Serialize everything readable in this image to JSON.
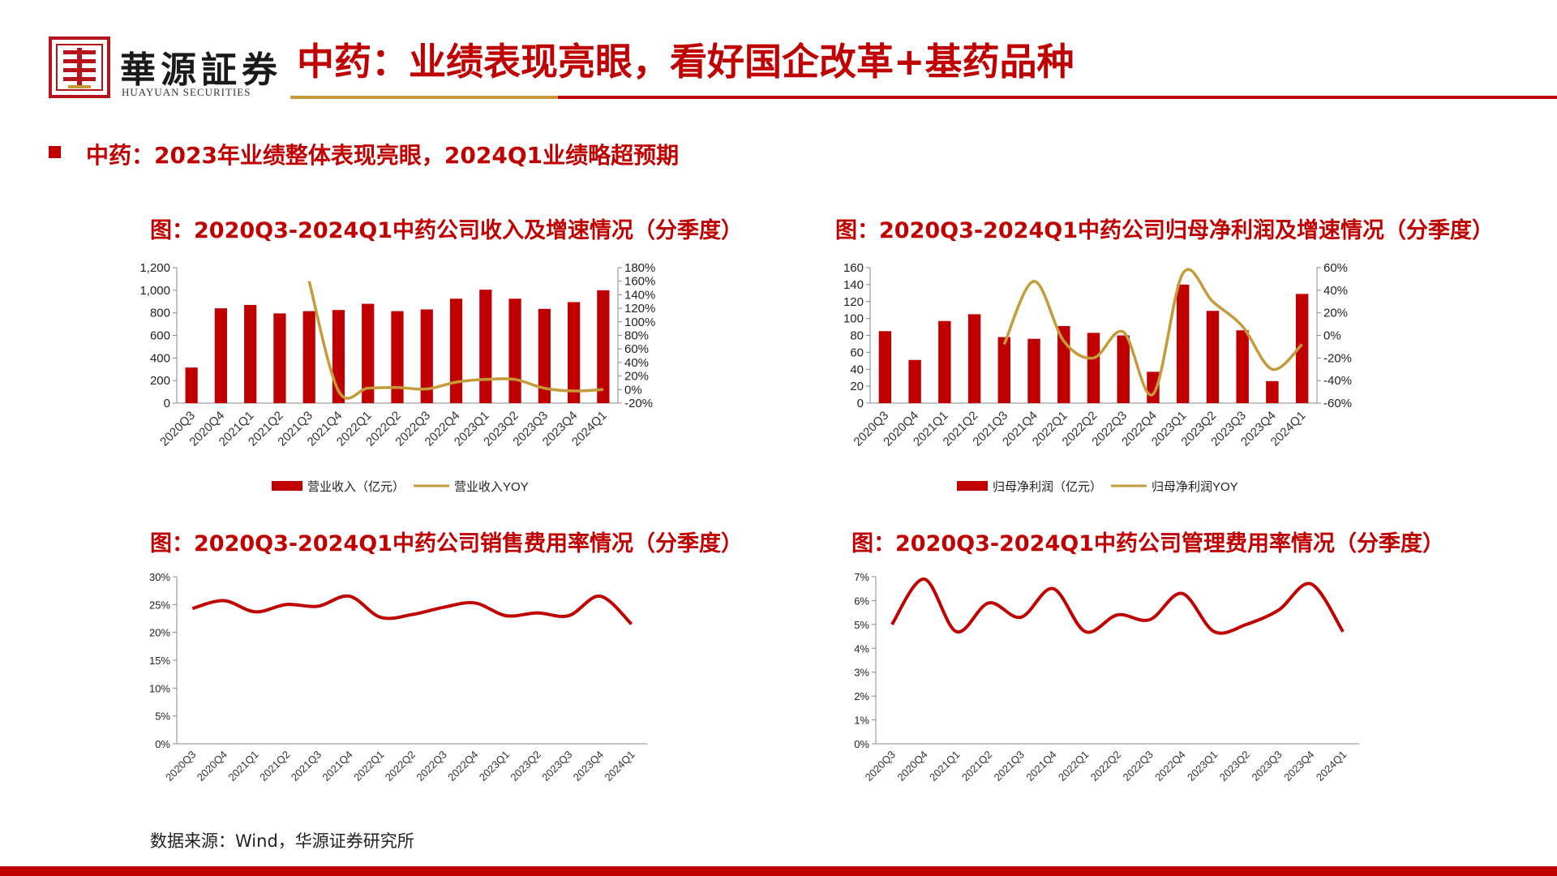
{
  "header": {
    "logo_cn": "華源証券",
    "logo_en": "HUAYUAN SECURITIES",
    "title": "中药：业绩表现亮眼，看好国企改革+基药品种"
  },
  "section": {
    "heading": "中药：2023年业绩整体表现亮眼，2024Q1业绩略超预期"
  },
  "footer": {
    "source": "数据来源：Wind，华源证券研究所"
  },
  "colors": {
    "bar": "#c00000",
    "yoy_line": "#c59b3a",
    "ratio_line": "#c00000",
    "brand_red": "#c00000",
    "brand_gold": "#c59b3a"
  },
  "chart_data": [
    {
      "id": "revenue",
      "type": "bar+line",
      "title": "图：2020Q3-2024Q1中药公司收入及增速情况（分季度）",
      "categories": [
        "2020Q3",
        "2020Q4",
        "2021Q1",
        "2021Q2",
        "2021Q3",
        "2021Q4",
        "2022Q1",
        "2022Q2",
        "2022Q3",
        "2022Q4",
        "2023Q1",
        "2023Q2",
        "2023Q3",
        "2023Q4",
        "2024Q1"
      ],
      "series": [
        {
          "name": "营业收入（亿元）",
          "kind": "bar",
          "axis": "left",
          "values": [
            315,
            840,
            870,
            795,
            815,
            825,
            880,
            815,
            830,
            925,
            1005,
            925,
            835,
            895,
            1000
          ]
        },
        {
          "name": "营业收入YOY",
          "kind": "line",
          "axis": "right",
          "values": [
            null,
            null,
            null,
            null,
            160,
            -2,
            2,
            3,
            1,
            11,
            15,
            15,
            2,
            -2,
            0
          ]
        }
      ],
      "left_axis": {
        "min": 0,
        "max": 1200,
        "ticks": [
          "0",
          "200",
          "400",
          "600",
          "800",
          "1,000",
          "1,200"
        ]
      },
      "right_axis": {
        "min": -20,
        "max": 180,
        "ticks": [
          "-20%",
          "0%",
          "20%",
          "40%",
          "60%",
          "80%",
          "100%",
          "120%",
          "140%",
          "160%",
          "180%"
        ]
      },
      "legend": [
        "营业收入（亿元）",
        "营业收入YOY"
      ],
      "legend_position": "bottom"
    },
    {
      "id": "profit",
      "type": "bar+line",
      "title": "图：2020Q3-2024Q1中药公司归母净利润及增速情况（分季度）",
      "categories": [
        "2020Q3",
        "2020Q4",
        "2021Q1",
        "2021Q2",
        "2021Q3",
        "2021Q4",
        "2022Q1",
        "2022Q2",
        "2022Q3",
        "2022Q4",
        "2023Q1",
        "2023Q2",
        "2023Q3",
        "2023Q4",
        "2024Q1"
      ],
      "series": [
        {
          "name": "归母净利润（亿元）",
          "kind": "bar",
          "axis": "left",
          "values": [
            85,
            51,
            97,
            105,
            78,
            76,
            91,
            83,
            80,
            37,
            140,
            109,
            86,
            26,
            129
          ]
        },
        {
          "name": "归母净利润YOY",
          "kind": "line",
          "axis": "right",
          "values": [
            null,
            null,
            null,
            null,
            -8,
            48,
            -5,
            -20,
            3,
            -52,
            55,
            30,
            8,
            -30,
            -8
          ]
        }
      ],
      "left_axis": {
        "min": 0,
        "max": 160,
        "ticks": [
          "0",
          "20",
          "40",
          "60",
          "80",
          "100",
          "120",
          "140",
          "160"
        ]
      },
      "right_axis": {
        "min": -60,
        "max": 60,
        "ticks": [
          "-60%",
          "-40%",
          "-20%",
          "0%",
          "20%",
          "40%",
          "60%"
        ]
      },
      "legend": [
        "归母净利润（亿元）",
        "归母净利润YOY"
      ],
      "legend_position": "bottom"
    },
    {
      "id": "selling",
      "type": "line",
      "title": "图：2020Q3-2024Q1中药公司销售费用率情况（分季度）",
      "categories": [
        "2020Q3",
        "2020Q4",
        "2021Q1",
        "2021Q2",
        "2021Q3",
        "2021Q4",
        "2022Q1",
        "2022Q2",
        "2022Q3",
        "2022Q4",
        "2023Q1",
        "2023Q2",
        "2023Q3",
        "2023Q4",
        "2024Q1"
      ],
      "series": [
        {
          "values": [
            24.3,
            25.7,
            23.7,
            25.0,
            24.7,
            26.5,
            22.7,
            23.2,
            24.5,
            25.3,
            23.0,
            23.5,
            23.0,
            26.5,
            21.5
          ]
        }
      ],
      "y_axis": {
        "min": 0,
        "max": 30,
        "ticks": [
          "0%",
          "5%",
          "10%",
          "15%",
          "20%",
          "25%",
          "30%"
        ]
      }
    },
    {
      "id": "admin",
      "type": "line",
      "title": "图：2020Q3-2024Q1中药公司管理费用率情况（分季度）",
      "categories": [
        "2020Q3",
        "2020Q4",
        "2021Q1",
        "2021Q2",
        "2021Q3",
        "2021Q4",
        "2022Q1",
        "2022Q2",
        "2022Q3",
        "2022Q4",
        "2023Q1",
        "2023Q2",
        "2023Q3",
        "2023Q4",
        "2024Q1"
      ],
      "series": [
        {
          "values": [
            5.0,
            6.9,
            4.7,
            5.9,
            5.3,
            6.5,
            4.7,
            5.4,
            5.2,
            6.3,
            4.7,
            5.0,
            5.6,
            6.7,
            4.7
          ]
        }
      ],
      "y_axis": {
        "min": 0,
        "max": 7,
        "ticks": [
          "0%",
          "1%",
          "2%",
          "3%",
          "4%",
          "5%",
          "6%",
          "7%"
        ]
      }
    }
  ]
}
